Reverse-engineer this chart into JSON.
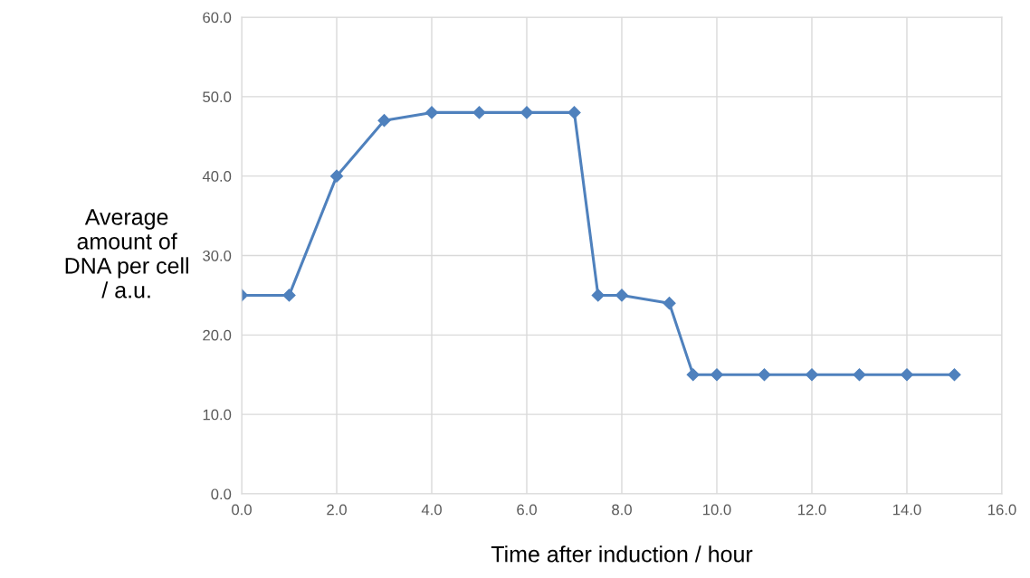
{
  "chart_data": {
    "type": "line",
    "xlabel": "Time after induction / hour",
    "ylabel": "Average\namount of\nDNA per cell\n/ a.u.",
    "x": [
      0,
      1,
      2,
      3,
      4,
      5,
      6,
      7,
      7.5,
      8,
      9,
      9.5,
      10,
      11,
      12,
      13,
      14,
      15
    ],
    "series": [
      {
        "color": "#4f81bd",
        "values": [
          25,
          25,
          40,
          47,
          48,
          48,
          48,
          48,
          25,
          25,
          24,
          15,
          15,
          15,
          15,
          15,
          15,
          15
        ]
      }
    ],
    "xlim": [
      0,
      16
    ],
    "xticks": [
      {
        "value": 0,
        "label": "0.0"
      },
      {
        "value": 2,
        "label": "2.0"
      },
      {
        "value": 4,
        "label": "4.0"
      },
      {
        "value": 6,
        "label": "6.0"
      },
      {
        "value": 8,
        "label": "8.0"
      },
      {
        "value": 10,
        "label": "10.0"
      },
      {
        "value": 12,
        "label": "12.0"
      },
      {
        "value": 14,
        "label": "14.0"
      },
      {
        "value": 16,
        "label": "16.0"
      }
    ],
    "ylim": [
      0,
      60
    ],
    "yticks": [
      {
        "value": 0,
        "label": "0.0"
      },
      {
        "value": 10,
        "label": "10.0"
      },
      {
        "value": 20,
        "label": "20.0"
      },
      {
        "value": 30,
        "label": "30.0"
      },
      {
        "value": 40,
        "label": "40.0"
      },
      {
        "value": 50,
        "label": "50.0"
      },
      {
        "value": 60,
        "label": "60.0"
      }
    ],
    "grid": true,
    "marker": "diamond",
    "line_style": "solid",
    "legend": false
  }
}
